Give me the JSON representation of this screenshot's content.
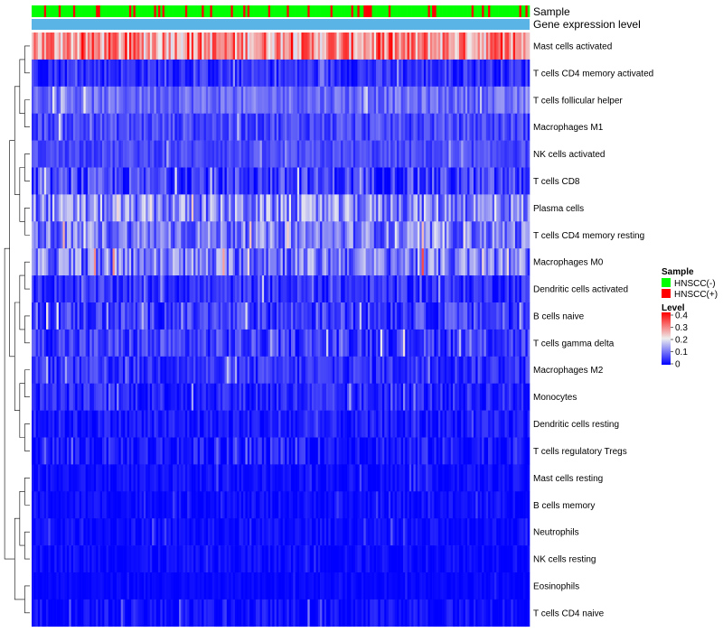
{
  "chart_data": {
    "type": "heatmap",
    "title": "",
    "clustered_rows": true,
    "sample_count": 240,
    "annotations": [
      {
        "name": "Sample"
      },
      {
        "name": "Gene expression level"
      }
    ],
    "sample_groups": {
      "HNSCC(-)": 190,
      "HNSCC(+)": 50
    },
    "rows": [
      {
        "name": "Mast cells activated",
        "mean": 0.28,
        "spread": 0.1
      },
      {
        "name": "T cells CD4 memory activated",
        "mean": 0.04,
        "spread": 0.04
      },
      {
        "name": "T cells follicular helper",
        "mean": 0.09,
        "spread": 0.04
      },
      {
        "name": "Macrophages M1",
        "mean": 0.06,
        "spread": 0.04
      },
      {
        "name": "NK cells activated",
        "mean": 0.06,
        "spread": 0.03
      },
      {
        "name": "T cells CD8",
        "mean": 0.05,
        "spread": 0.06
      },
      {
        "name": "Plasma cells",
        "mean": 0.11,
        "spread": 0.08
      },
      {
        "name": "T cells CD4 memory resting",
        "mean": 0.1,
        "spread": 0.07
      },
      {
        "name": "Macrophages M0",
        "mean": 0.1,
        "spread": 0.08
      },
      {
        "name": "Dendritic cells activated",
        "mean": 0.04,
        "spread": 0.04
      },
      {
        "name": "B cells naive",
        "mean": 0.05,
        "spread": 0.05
      },
      {
        "name": "T cells gamma delta",
        "mean": 0.05,
        "spread": 0.05
      },
      {
        "name": "Macrophages M2",
        "mean": 0.04,
        "spread": 0.04
      },
      {
        "name": "Monocytes",
        "mean": 0.03,
        "spread": 0.04
      },
      {
        "name": "Dendritic cells resting",
        "mean": 0.02,
        "spread": 0.03
      },
      {
        "name": "T cells regulatory  Tregs",
        "mean": 0.02,
        "spread": 0.04
      },
      {
        "name": "Mast cells resting",
        "mean": 0.01,
        "spread": 0.02
      },
      {
        "name": "B cells memory",
        "mean": 0.01,
        "spread": 0.02
      },
      {
        "name": "Neutrophils",
        "mean": 0.01,
        "spread": 0.02
      },
      {
        "name": "NK cells resting",
        "mean": 0.01,
        "spread": 0.02
      },
      {
        "name": "Eosinophils",
        "mean": 0.005,
        "spread": 0.01
      },
      {
        "name": "T cells CD4 naive",
        "mean": 0.01,
        "spread": 0.03
      }
    ],
    "legend": {
      "sample": {
        "title": "Sample",
        "entries": [
          {
            "label": "HNSCC(-)",
            "color": "#00ff00"
          },
          {
            "label": "HNSCC(+)",
            "color": "#ff0000"
          }
        ]
      },
      "level": {
        "title": "Level",
        "ticks": [
          "0.4",
          "0.3",
          "0.2",
          "0.1",
          "0"
        ],
        "range": [
          0,
          0.4
        ]
      }
    },
    "colors": {
      "low": "#0000ff",
      "mid": "#eeeeee",
      "high": "#ff0000",
      "expression_bar": "#5ab4e5"
    }
  }
}
